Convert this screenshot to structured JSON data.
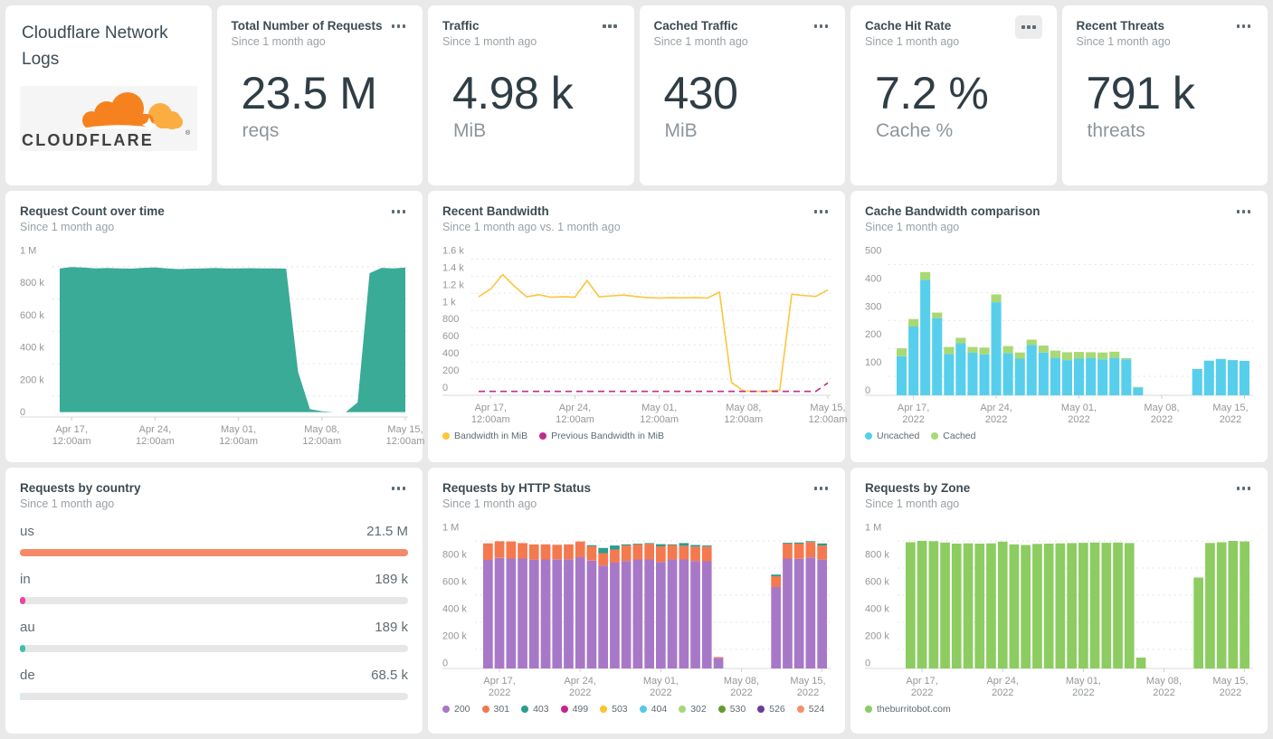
{
  "dashboard": {
    "title": "Cloudflare Network Logs",
    "logo_text": "CLOUDFLARE",
    "logo_registered": "®"
  },
  "menu_icon": "ellipsis-menu",
  "stat_cards": [
    {
      "title": "Total Number of Requests",
      "subtitle": "Since 1 month ago",
      "value": "23.5 M",
      "unit": "reqs"
    },
    {
      "title": "Traffic",
      "subtitle": "Since 1 month ago",
      "value": "4.98 k",
      "unit": "MiB"
    },
    {
      "title": "Cached Traffic",
      "subtitle": "Since 1 month ago",
      "value": "430",
      "unit": "MiB"
    },
    {
      "title": "Cache Hit Rate",
      "subtitle": "Since 1 month ago",
      "value": "7.2 %",
      "unit": "Cache %",
      "menu_highlighted": true
    },
    {
      "title": "Recent Threats",
      "subtitle": "Since 1 month ago",
      "value": "791 k",
      "unit": "threats"
    }
  ],
  "chart_data": [
    {
      "id": "request-count-over-time",
      "type": "area",
      "title": "Request Count over time",
      "subtitle": "Since 1 month ago",
      "color": "#3aab96",
      "n": 30,
      "ml": 44,
      "ymin": -30,
      "ymax": 1000,
      "ylabel_unit": "requests (k)",
      "yticks": [
        {
          "v": 0,
          "l": "0"
        },
        {
          "v": 200,
          "l": "200 k"
        },
        {
          "v": 400,
          "l": "400 k"
        },
        {
          "v": 600,
          "l": "600 k"
        },
        {
          "v": 800,
          "l": "800 k"
        },
        {
          "v": 1000,
          "l": "1 M"
        }
      ],
      "xticks": [
        {
          "i": 1,
          "l1": "Apr 17,",
          "l2": "12:00am"
        },
        {
          "i": 8,
          "l1": "Apr 24,",
          "l2": "12:00am"
        },
        {
          "i": 15,
          "l1": "May 01,",
          "l2": "12:00am"
        },
        {
          "i": 22,
          "l1": "May 08,",
          "l2": "12:00am"
        },
        {
          "i": 29,
          "l1": "May 15,",
          "l2": "12:00am"
        }
      ],
      "values": [
        890,
        898,
        895,
        890,
        892,
        890,
        888,
        893,
        896,
        890,
        885,
        888,
        890,
        892,
        890,
        889,
        891,
        890,
        889,
        888,
        250,
        18,
        6,
        0,
        0,
        60,
        860,
        893,
        890,
        895
      ]
    },
    {
      "id": "recent-bandwidth",
      "type": "line",
      "title": "Recent Bandwidth",
      "subtitle": "Since 1 month ago vs. 1 month ago",
      "n": 30,
      "ml": 40,
      "ymin": -90,
      "ymax": 1600,
      "ylabel_unit": "MiB",
      "yticks": [
        {
          "v": 0,
          "l": "0"
        },
        {
          "v": 200,
          "l": "200"
        },
        {
          "v": 400,
          "l": "400"
        },
        {
          "v": 600,
          "l": "600"
        },
        {
          "v": 800,
          "l": "800"
        },
        {
          "v": 1000,
          "l": "1 k"
        },
        {
          "v": 1200,
          "l": "1.2 k"
        },
        {
          "v": 1400,
          "l": "1.4 k"
        },
        {
          "v": 1600,
          "l": "1.6 k"
        }
      ],
      "xticks": [
        {
          "i": 1,
          "l1": "Apr 17,",
          "l2": "12:00am"
        },
        {
          "i": 8,
          "l1": "Apr 24,",
          "l2": "12:00am"
        },
        {
          "i": 15,
          "l1": "May 01,",
          "l2": "12:00am"
        },
        {
          "i": 22,
          "l1": "May 08,",
          "l2": "12:00am"
        },
        {
          "i": 29,
          "l1": "May 15,",
          "l2": "12:00am"
        }
      ],
      "series": [
        {
          "name": "Bandwidth in MiB",
          "color": "#fcc63d",
          "values": [
            1060,
            1150,
            1320,
            1180,
            1060,
            1085,
            1055,
            1060,
            1055,
            1250,
            1060,
            1070,
            1080,
            1065,
            1050,
            1045,
            1050,
            1048,
            1052,
            1045,
            1115,
            60,
            -40,
            -45,
            -45,
            -30,
            1090,
            1075,
            1065,
            1140
          ]
        },
        {
          "name": "Previous Bandwidth in MiB",
          "color": "#c32b8c",
          "dash": "7 5",
          "values": [
            -45,
            -45,
            -45,
            -45,
            -45,
            -45,
            -45,
            -45,
            -45,
            -45,
            -45,
            -45,
            -45,
            -45,
            -45,
            -45,
            -45,
            -45,
            -45,
            -45,
            -45,
            -45,
            -45,
            -45,
            -45,
            -45,
            -45,
            -45,
            -45,
            55
          ]
        }
      ],
      "legend": [
        {
          "label": "Bandwidth in MiB",
          "color": "#fcc63d"
        },
        {
          "label": "Previous Bandwidth in MiB",
          "color": "#c32b8c"
        }
      ]
    },
    {
      "id": "cache-bandwidth-comparison",
      "type": "bar",
      "title": "Cache Bandwidth comparison",
      "subtitle": "Since 1 month ago",
      "n": 30,
      "ml": 34,
      "ymin": -18,
      "ymax": 500,
      "ylabel_unit": "MiB",
      "yticks": [
        {
          "v": 0,
          "l": "0"
        },
        {
          "v": 100,
          "l": "100"
        },
        {
          "v": 200,
          "l": "200"
        },
        {
          "v": 300,
          "l": "300"
        },
        {
          "v": 400,
          "l": "400"
        },
        {
          "v": 500,
          "l": "500"
        }
      ],
      "xticks": [
        {
          "i": 1,
          "l1": "Apr 17,",
          "l2": "2022"
        },
        {
          "i": 8,
          "l1": "Apr 24,",
          "l2": "2022"
        },
        {
          "i": 15,
          "l1": "May 01,",
          "l2": "2022"
        },
        {
          "i": 22,
          "l1": "May 08,",
          "l2": "2022"
        },
        {
          "i": 29,
          "l1": "May 15,",
          "l2": "2022"
        }
      ],
      "series": [
        {
          "name": "Uncached",
          "color": "#57cfec",
          "values": [
            122,
            228,
            395,
            258,
            130,
            168,
            135,
            128,
            315,
            133,
            113,
            162,
            135,
            116,
            108,
            113,
            116,
            111,
            116,
            111,
            10,
            0,
            0,
            0,
            0,
            76,
            106,
            112,
            108,
            105
          ]
        },
        {
          "name": "Cached",
          "color": "#a8d973",
          "values": [
            28,
            27,
            28,
            20,
            25,
            20,
            20,
            25,
            28,
            25,
            22,
            19,
            25,
            26,
            28,
            24,
            20,
            24,
            22,
            4,
            2,
            0,
            0,
            0,
            0,
            0,
            0,
            0,
            0,
            0
          ]
        }
      ],
      "legend": [
        {
          "label": "Uncached",
          "color": "#57cfec"
        },
        {
          "label": "Cached",
          "color": "#a8d973"
        }
      ]
    },
    {
      "id": "requests-by-country",
      "type": "hbar",
      "title": "Requests by country",
      "subtitle": "Since 1 month ago",
      "track_color": "#e6e6e6",
      "rows": [
        {
          "label": "us",
          "value": "21.5 M",
          "pct": 100,
          "color": "#f48a68"
        },
        {
          "label": "in",
          "value": "189 k",
          "pct": 1.3,
          "color": "#e8479b"
        },
        {
          "label": "au",
          "value": "189 k",
          "pct": 1.3,
          "color": "#3cc0ac"
        },
        {
          "label": "de",
          "value": "68.5 k",
          "pct": 0.6,
          "color": "#d8e9f2"
        }
      ]
    },
    {
      "id": "requests-by-http-status",
      "type": "bar",
      "title": "Requests by HTTP Status",
      "subtitle": "Since 1 month ago",
      "n": 30,
      "ml": 44,
      "ymin": -40,
      "ymax": 1000,
      "ylabel_unit": "requests (k)",
      "yticks": [
        {
          "v": 0,
          "l": "0"
        },
        {
          "v": 200,
          "l": "200 k"
        },
        {
          "v": 400,
          "l": "400 k"
        },
        {
          "v": 600,
          "l": "600 k"
        },
        {
          "v": 800,
          "l": "800 k"
        },
        {
          "v": 1000,
          "l": "1 M"
        }
      ],
      "xticks": [
        {
          "i": 1,
          "l1": "Apr 17,",
          "l2": "2022"
        },
        {
          "i": 8,
          "l1": "Apr 24,",
          "l2": "2022"
        },
        {
          "i": 15,
          "l1": "May 01,",
          "l2": "2022"
        },
        {
          "i": 22,
          "l1": "May 08,",
          "l2": "2022"
        },
        {
          "i": 29,
          "l1": "May 15,",
          "l2": "2022"
        }
      ],
      "series": [
        {
          "name": "200",
          "color": "#a878c8",
          "values": [
            760,
            775,
            770,
            770,
            762,
            763,
            764,
            765,
            780,
            755,
            718,
            740,
            752,
            763,
            763,
            745,
            764,
            763,
            752,
            750,
            38,
            0,
            0,
            0,
            0,
            560,
            770,
            768,
            778,
            762
          ]
        },
        {
          "name": "301",
          "color": "#f4794f",
          "values": [
            122,
            122,
            126,
            114,
            112,
            112,
            107,
            110,
            116,
            106,
            92,
            96,
            115,
            112,
            115,
            115,
            106,
            101,
            106,
            108,
            6,
            0,
            0,
            0,
            0,
            80,
            110,
            112,
            114,
            104
          ]
        },
        {
          "name": "403",
          "color": "#2a9d8f",
          "values": [
            0,
            0,
            0,
            0,
            0,
            0,
            0,
            0,
            0,
            8,
            38,
            30,
            8,
            5,
            6,
            16,
            5,
            20,
            12,
            8,
            0,
            0,
            0,
            0,
            0,
            12,
            6,
            8,
            6,
            15
          ]
        }
      ],
      "legend": [
        {
          "label": "200",
          "color": "#a878c8"
        },
        {
          "label": "301",
          "color": "#f4774e"
        },
        {
          "label": "403",
          "color": "#2a9d8f"
        },
        {
          "label": "499",
          "color": "#c2268c"
        },
        {
          "label": "503",
          "color": "#fcc32d"
        },
        {
          "label": "404",
          "color": "#57c8e9"
        },
        {
          "label": "302",
          "color": "#a5d978"
        },
        {
          "label": "530",
          "color": "#679a2f"
        },
        {
          "label": "526",
          "color": "#6a3e95"
        },
        {
          "label": "524",
          "color": "#f78f6d"
        }
      ]
    },
    {
      "id": "requests-by-zone",
      "type": "bar",
      "title": "Requests by Zone",
      "subtitle": "Since 1 month ago",
      "n": 30,
      "ml": 44,
      "ymin": -40,
      "ymax": 1000,
      "ylabel_unit": "requests (k)",
      "yticks": [
        {
          "v": 0,
          "l": "0"
        },
        {
          "v": 200,
          "l": "200 k"
        },
        {
          "v": 400,
          "l": "400 k"
        },
        {
          "v": 600,
          "l": "600 k"
        },
        {
          "v": 800,
          "l": "800 k"
        },
        {
          "v": 1000,
          "l": "1 M"
        }
      ],
      "xticks": [
        {
          "i": 1,
          "l1": "Apr 17,",
          "l2": "2022"
        },
        {
          "i": 8,
          "l1": "Apr 24,",
          "l2": "2022"
        },
        {
          "i": 15,
          "l1": "May 01,",
          "l2": "2022"
        },
        {
          "i": 22,
          "l1": "May 08,",
          "l2": "2022"
        },
        {
          "i": 29,
          "l1": "May 15,",
          "l2": "2022"
        }
      ],
      "series": [
        {
          "name": "theburritobot.com",
          "color": "#8ccc61",
          "values": [
            890,
            900,
            898,
            888,
            880,
            882,
            880,
            882,
            895,
            875,
            870,
            878,
            880,
            882,
            884,
            886,
            888,
            886,
            888,
            884,
            40,
            0,
            0,
            0,
            0,
            630,
            885,
            890,
            900,
            896
          ]
        }
      ],
      "legend": [
        {
          "label": "theburritobot.com",
          "color": "#8ccc61"
        }
      ]
    }
  ]
}
